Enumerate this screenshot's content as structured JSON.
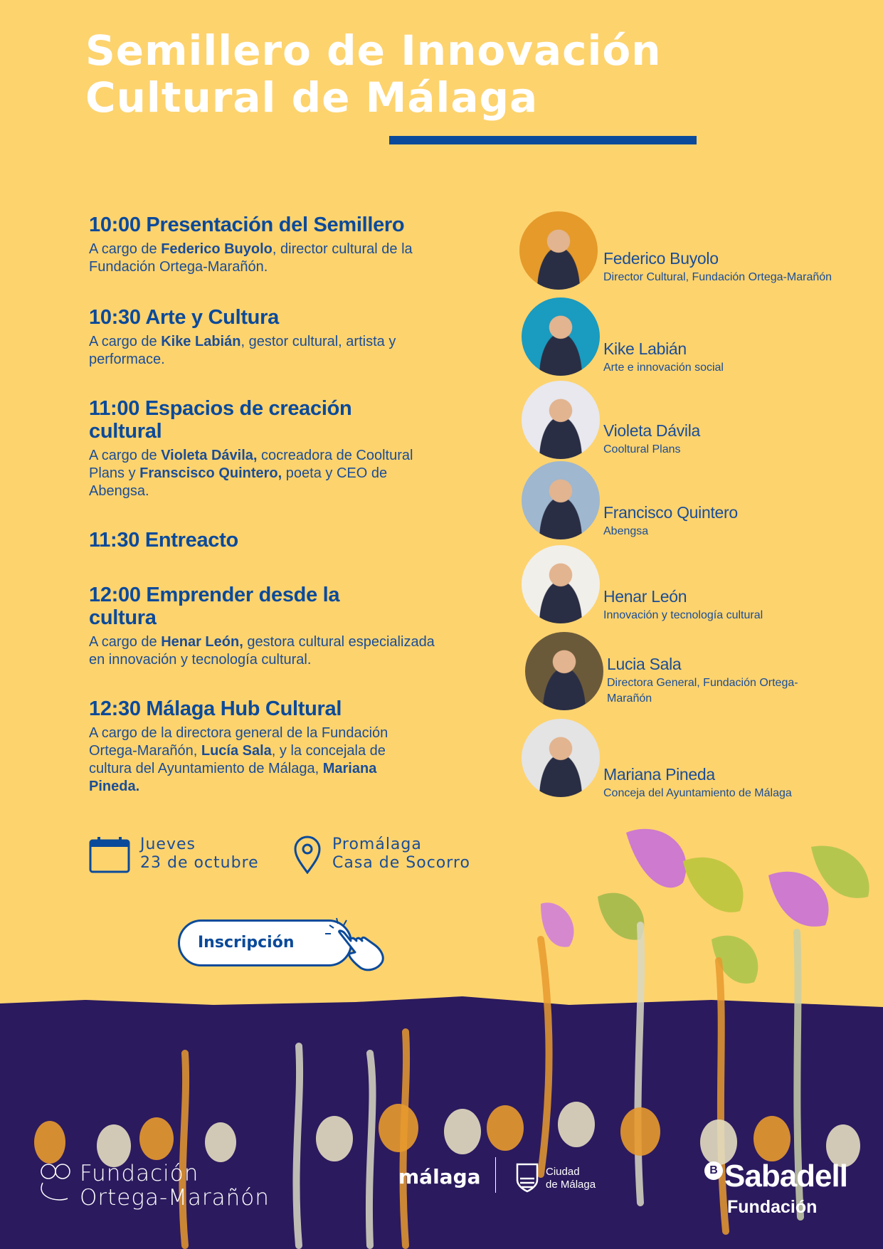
{
  "title": {
    "line1": "Semillero de Innovación",
    "line2": "Cultural de Málaga"
  },
  "agenda": [
    {
      "heading": "10:00 Presentación del Semillero",
      "pre": "A cargo de ",
      "bold1": "Federico Buyolo",
      "mid": ", director cultural de la Fundación Ortega-Marañón.",
      "bold2": "",
      "post": ""
    },
    {
      "heading": "10:30 Arte y Cultura",
      "pre": "A cargo de ",
      "bold1": "Kike Labián",
      "mid": ", gestor cultural, artista y performace.",
      "bold2": "",
      "post": ""
    },
    {
      "heading": "11:00 Espacios de creación cultural",
      "pre": "A cargo de ",
      "bold1": "Violeta Dávila,",
      "mid": " cocreadora de Cooltural Plans y ",
      "bold2": "Franscisco Quintero,",
      "post": " poeta y CEO de Abengsa."
    },
    {
      "heading": "11:30 Entreacto"
    },
    {
      "heading": "12:00 Emprender desde la cultura",
      "pre": "A cargo de ",
      "bold1": "Henar León,",
      "mid": " gestora cultural especializada en innovación y tecnología cultural.",
      "bold2": "",
      "post": ""
    },
    {
      "heading": "12:30 Málaga Hub Cultural",
      "pre": "A cargo de la directora general de la Fundación Ortega-Marañón, ",
      "bold1": "Lucía Sala",
      "mid": ", y la concejala de cultura del Ayuntamiento de Málaga, ",
      "bold2": "Mariana Pineda.",
      "post": ""
    }
  ],
  "speakers": [
    {
      "name": "Federico Buyolo",
      "role": "Director Cultural, Fundación Ortega-Marañón",
      "color": "#E59A2A"
    },
    {
      "name": "Kike Labián",
      "role": "Arte e innovación social",
      "color": "#1A9BC0"
    },
    {
      "name": "Violeta Dávila",
      "role": "Cooltural Plans",
      "color": "#E8E8EE"
    },
    {
      "name": "Francisco Quintero",
      "role": "Abengsa",
      "color": "#9FB7CF"
    },
    {
      "name": "Henar León",
      "role": "Innovación y tecnología cultural",
      "color": "#F1EFEA"
    },
    {
      "name": "Lucia Sala",
      "role": "Directora General, Fundación Ortega-Marañón",
      "color": "#6B5A3A"
    },
    {
      "name": "Mariana Pineda",
      "role": "Conceja del Ayuntamiento de Málaga",
      "color": "#E4E4E4"
    }
  ],
  "event": {
    "day": "Jueves",
    "date": "23 de octubre",
    "venue1": "Promálaga",
    "venue2": "Casa de Socorro"
  },
  "button": {
    "label": "Inscripción"
  },
  "logos": {
    "fom1": "Fundación",
    "fom2": "Ortega-Marañón",
    "malaga": "málaga",
    "ciudad1": "Ciudad",
    "ciudad2": "de Málaga",
    "sabadell1": "Sabadell",
    "sabadell2": "Fundación"
  },
  "colors": {
    "background": "#FDD36E",
    "accent": "#0B4A9A",
    "soil": "#2B1A5E"
  }
}
